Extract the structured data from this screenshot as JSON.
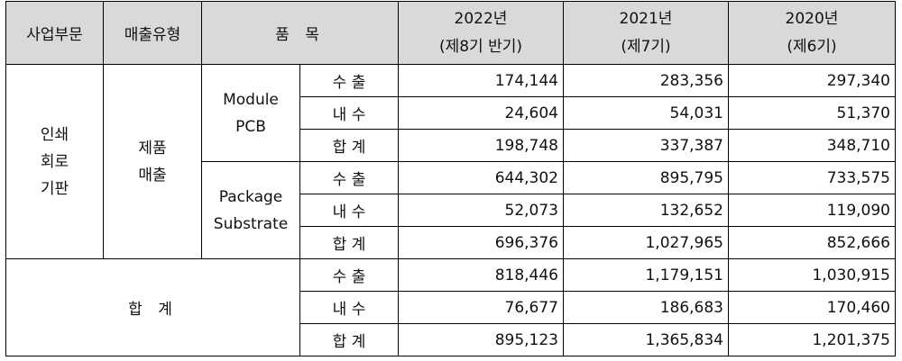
{
  "header": {
    "segment": "사업부문",
    "sales_type": "매출유형",
    "item": "품 목",
    "periods": [
      {
        "year": "2022년",
        "term": "(제8기 반기)"
      },
      {
        "year": "2021년",
        "term": "(제7기)"
      },
      {
        "year": "2020년",
        "term": "(제6기)"
      }
    ]
  },
  "segment_name": "인쇄 회로 기판",
  "segment_lines": [
    "인쇄",
    "회로",
    "기판"
  ],
  "sales_type_lines": [
    "제품",
    "매출"
  ],
  "groups": [
    {
      "product_lines": [
        "Module",
        "PCB"
      ],
      "rows": [
        {
          "kind": "수 출",
          "values": [
            "174,144",
            "283,356",
            "297,340"
          ]
        },
        {
          "kind": "내 수",
          "values": [
            "24,604",
            "54,031",
            "51,370"
          ]
        },
        {
          "kind": "합 계",
          "values": [
            "198,748",
            "337,387",
            "348,710"
          ]
        }
      ]
    },
    {
      "product_lines": [
        "Package",
        "Substrate"
      ],
      "rows": [
        {
          "kind": "수 출",
          "values": [
            "644,302",
            "895,795",
            "733,575"
          ]
        },
        {
          "kind": "내 수",
          "values": [
            "52,073",
            "132,652",
            "119,090"
          ]
        },
        {
          "kind": "합 계",
          "values": [
            "696,376",
            "1,027,965",
            "852,666"
          ]
        }
      ]
    }
  ],
  "total": {
    "label": "합 계",
    "rows": [
      {
        "kind": "수 출",
        "values": [
          "818,446",
          "1,179,151",
          "1,030,915"
        ]
      },
      {
        "kind": "내 수",
        "values": [
          "76,677",
          "186,683",
          "170,460"
        ]
      },
      {
        "kind": "합 계",
        "values": [
          "895,123",
          "1,365,834",
          "1,201,375"
        ]
      }
    ]
  }
}
